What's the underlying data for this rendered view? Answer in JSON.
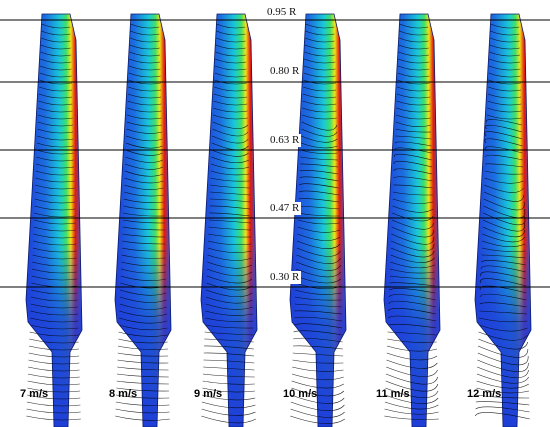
{
  "radius_labels": [
    "0.95 R",
    "0.80 R",
    "0.63 R",
    "0.47 R",
    "0.30 R"
  ],
  "speed_labels": [
    "7 m/s",
    "8 m/s",
    "9 m/s",
    "10 m/s",
    "11 m/s",
    "12 m/s"
  ],
  "colors": {
    "surface_low": "#1f3fd8",
    "surface_mid": "#19c8d8",
    "surface_high": "#f2e21b",
    "surface_peak": "#e21a12",
    "streamline": "#000000",
    "section_line": "#000000"
  }
}
